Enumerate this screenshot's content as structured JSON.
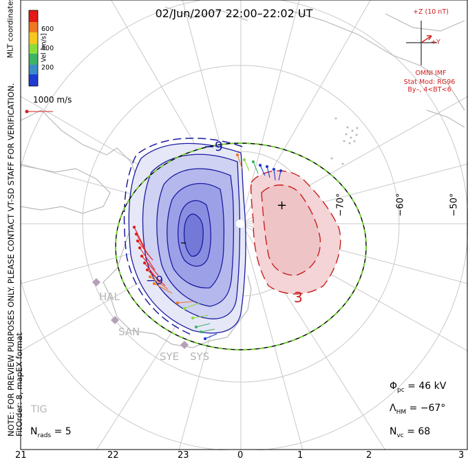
{
  "title": "02/Jun/2007  22:00–22:02  UT",
  "side_note_line1": "NOTE: FOR PREVIEW PURPOSES ONLY. PLEASE CONTACT VT-SD STAFF FOR VERIFICATION.",
  "side_note_line2": "FitOrder: 8, mapEX format",
  "coord_label": "MLT coordinates",
  "velocity_legend": {
    "label": "Vel [m/s]",
    "ticks": [
      "600",
      "400",
      "200"
    ],
    "colors": [
      "#e4191a",
      "#f0781e",
      "#f5c81e",
      "#8cdc3c",
      "#3cb464",
      "#3c8cc8",
      "#1e3cd2"
    ]
  },
  "scale_vector": "1000 m/s",
  "imf": {
    "z_label": "+Z (10 nT)",
    "y_label": "+Y",
    "source": "OMNI IMF",
    "model_line1": "Stat Mod: RG96",
    "model_line2": "By–, 4<BT<6"
  },
  "latitude_labels": [
    "−70°",
    "−60°",
    "−50°"
  ],
  "mlt_labels": [
    "21",
    "22",
    "23",
    "0",
    "1",
    "2",
    "3"
  ],
  "contour_labels": {
    "negative": "−9",
    "positive": "3",
    "min_marker": "–",
    "max_marker": "+"
  },
  "stations": [
    "HAL",
    "SAN",
    "SYE",
    "SYS",
    "TIG"
  ],
  "stats": {
    "phi_pc": "= 46 kV",
    "lambda_hm": "= −67°",
    "n_vc": "= 68",
    "n_rads": "= 5"
  },
  "colors": {
    "negative_contour": "#1a1aa0",
    "positive_contour": "#c81e1e",
    "boundary_green": "#6fd030",
    "coast": "#b9b9b9",
    "grid": "#c8c8c8"
  }
}
